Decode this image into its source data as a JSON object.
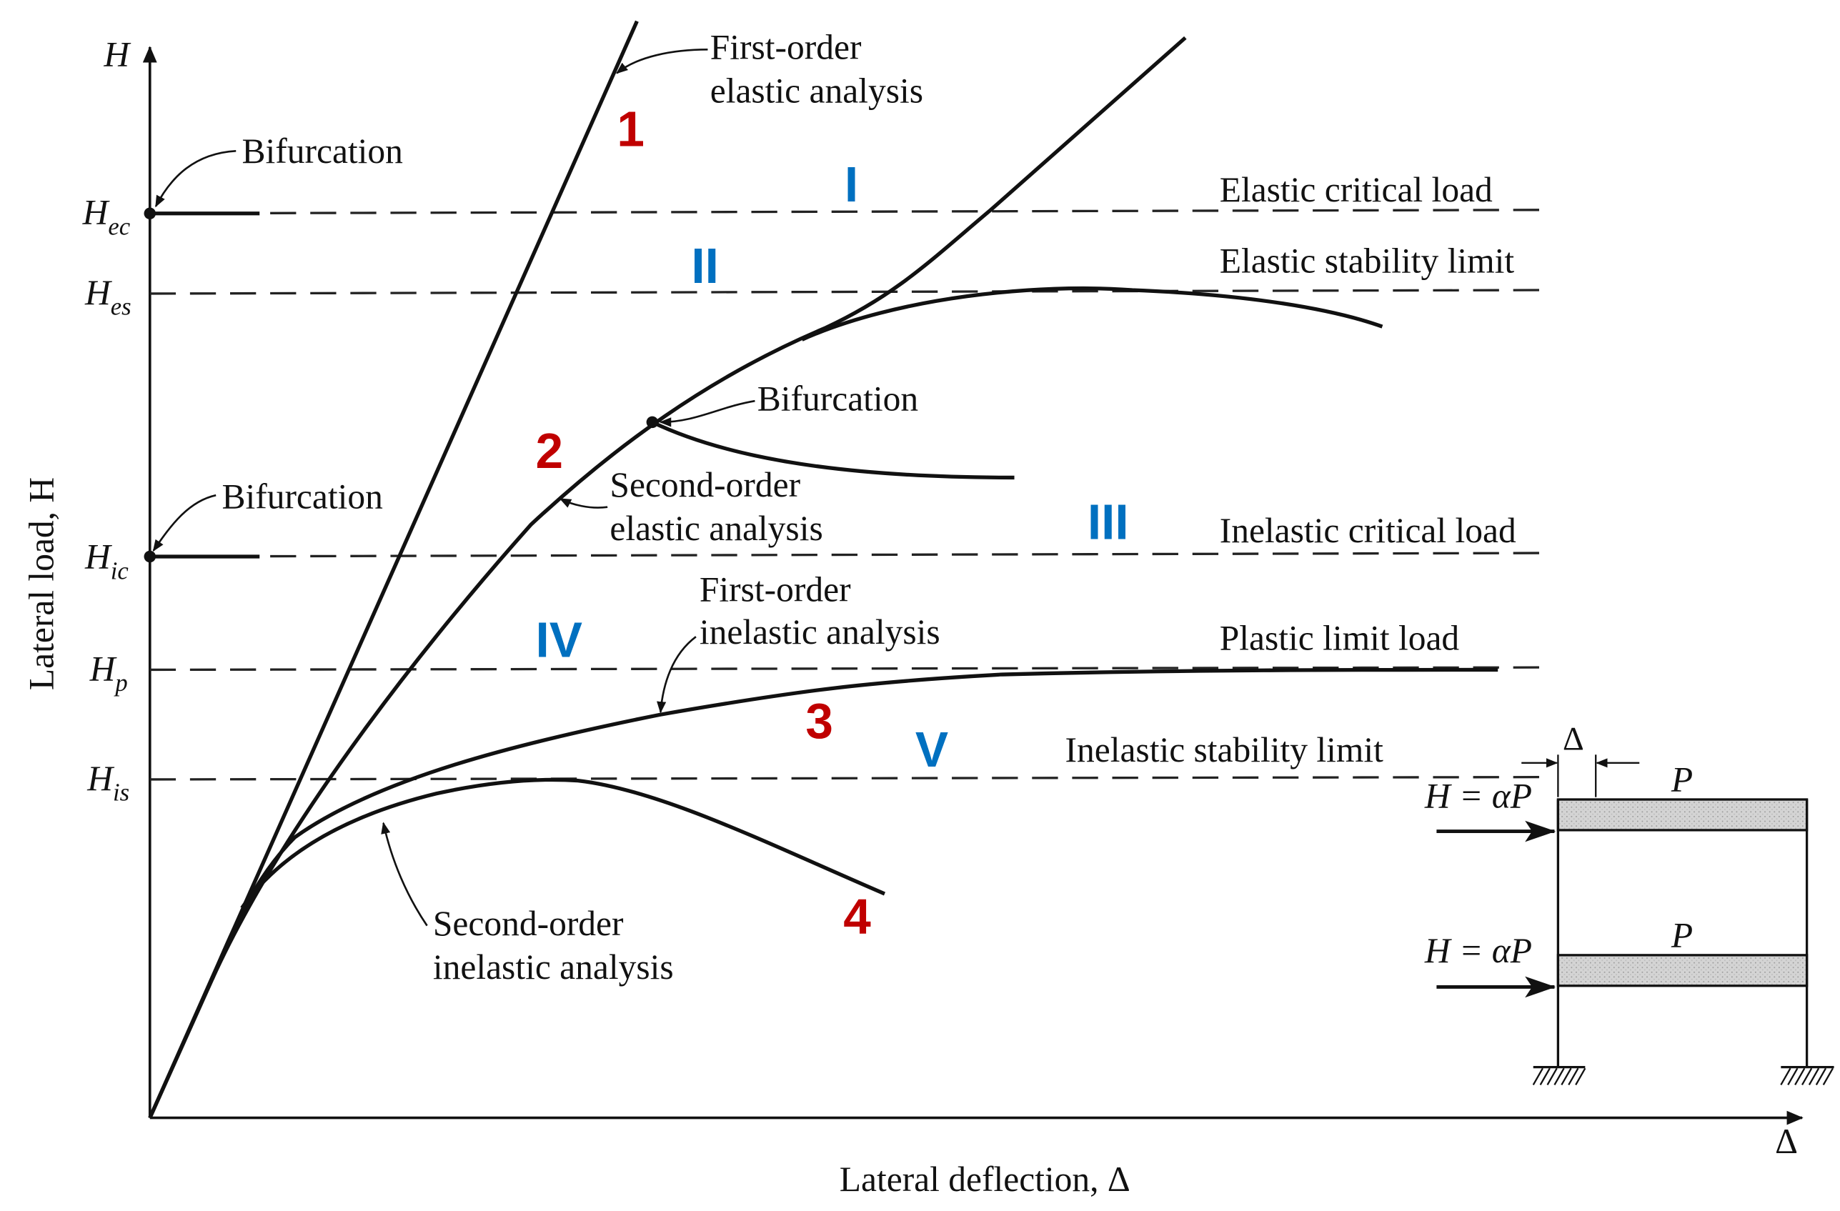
{
  "axes": {
    "y_symbol": "H",
    "x_symbol": "Δ",
    "y_label": "Lateral load, H",
    "x_label": "Lateral deflection, Δ"
  },
  "levels": [
    {
      "symbol": "H",
      "sub": "ec",
      "label": "Elastic critical load"
    },
    {
      "symbol": "H",
      "sub": "es",
      "label": "Elastic stability limit"
    },
    {
      "symbol": "H",
      "sub": "ic",
      "label": "Inelastic critical load"
    },
    {
      "symbol": "H",
      "sub": "p",
      "label": "Plastic limit load"
    },
    {
      "symbol": "H",
      "sub": "is",
      "label": "Inelastic stability limit"
    }
  ],
  "annotations": {
    "first_order_elastic": [
      "First-order",
      "elastic analysis"
    ],
    "second_order_elastic": [
      "Second-order",
      "elastic analysis"
    ],
    "first_order_inelastic": [
      "First-order",
      "inelastic analysis"
    ],
    "second_order_inelastic": [
      "Second-order",
      "inelastic analysis"
    ],
    "bifurcation": "Bifurcation"
  },
  "curve_numbers": [
    "1",
    "2",
    "3",
    "4"
  ],
  "region_numerals": [
    "I",
    "II",
    "III",
    "IV",
    "V"
  ],
  "frame": {
    "load_label": "H = αP",
    "gravity_label": "P",
    "drift_label": "Δ"
  },
  "colors": {
    "curve_numbers": "#c00000",
    "region_numerals": "#0070c0",
    "lines": "#111111"
  }
}
